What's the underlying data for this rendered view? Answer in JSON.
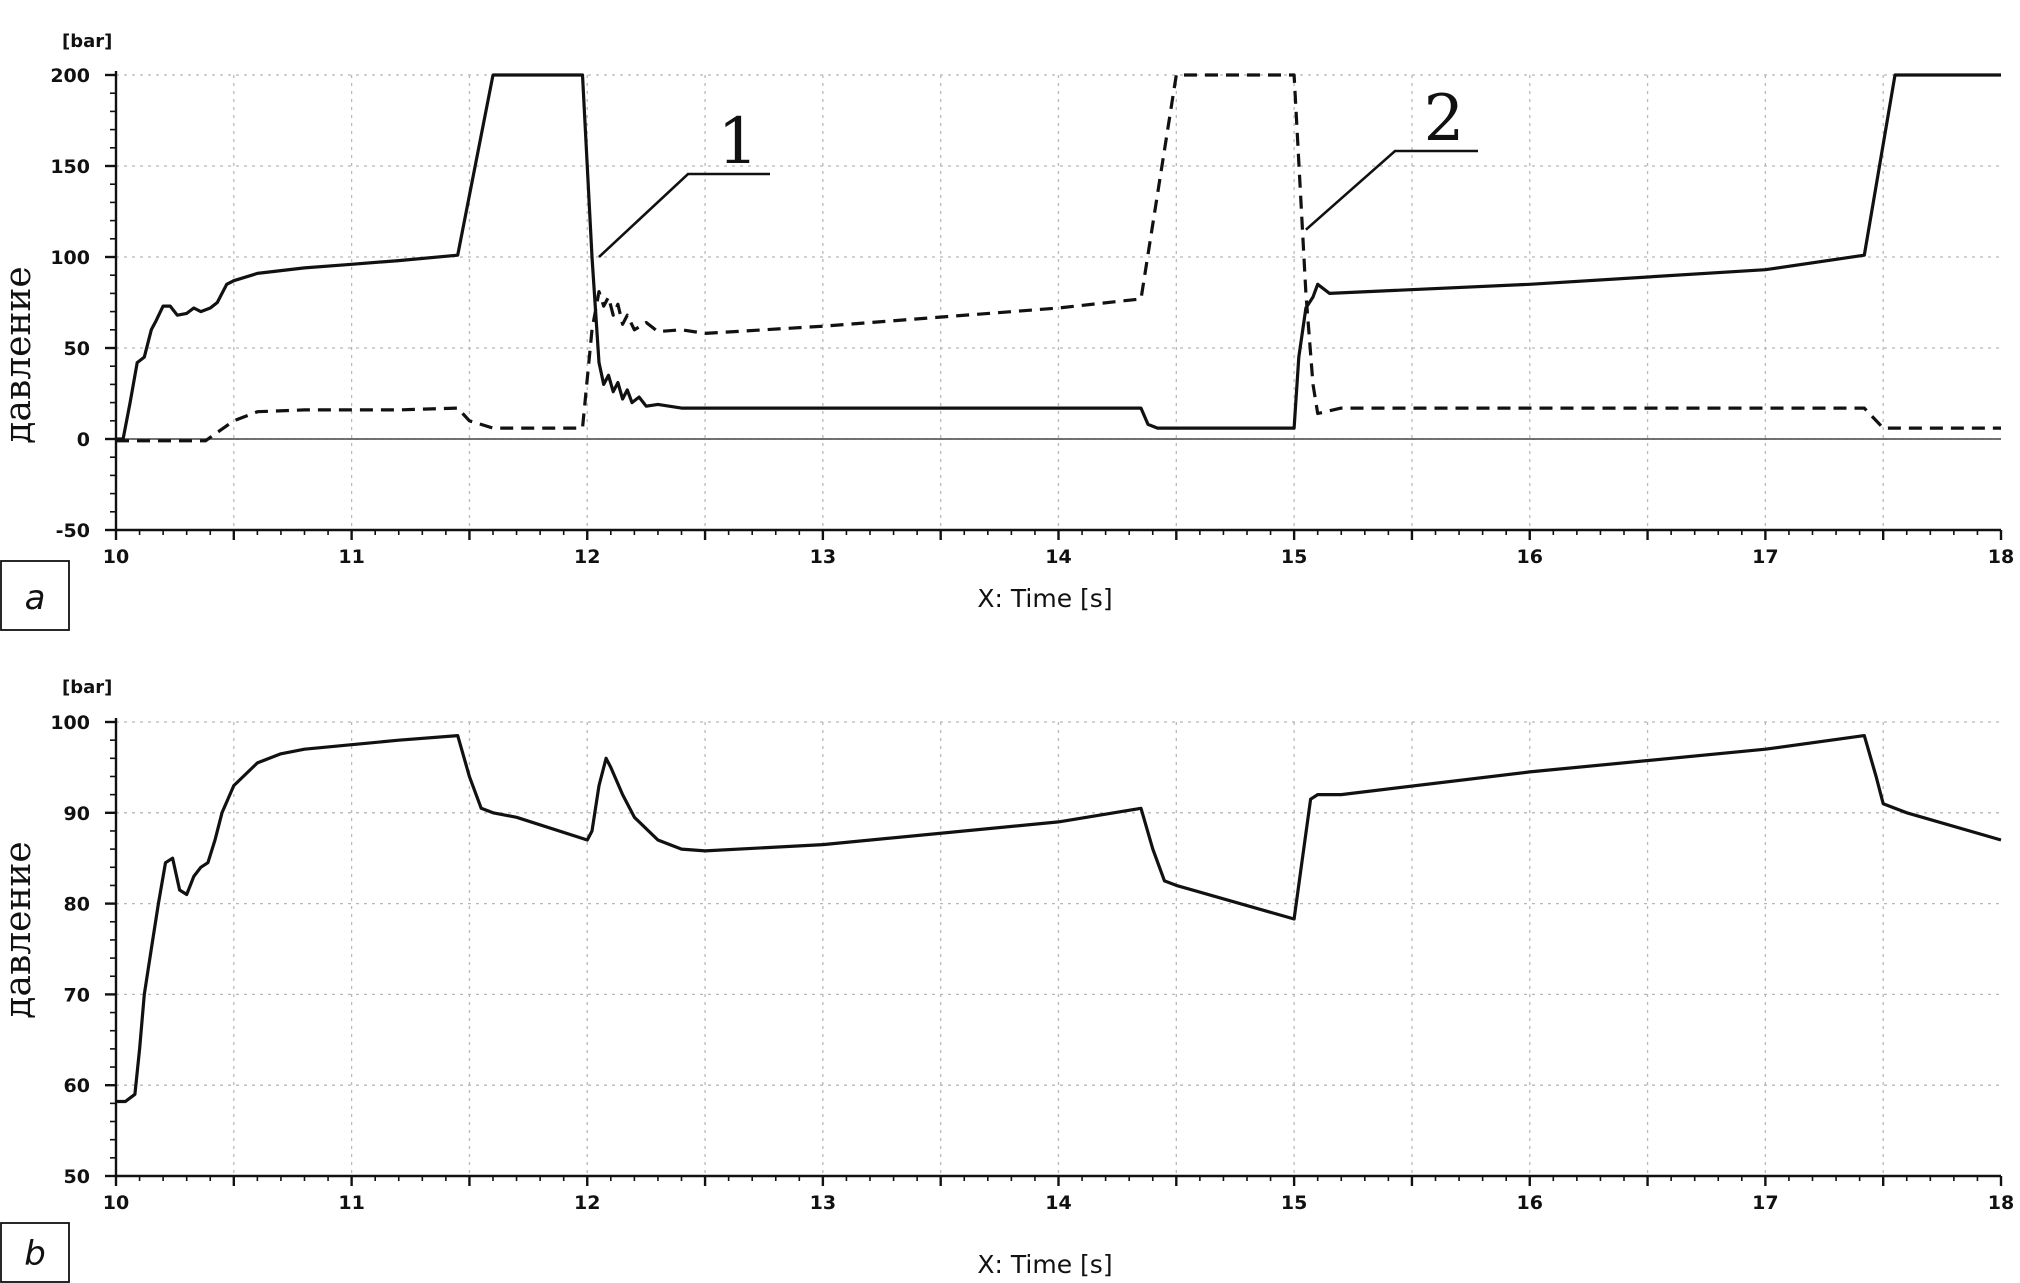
{
  "chart_data": [
    {
      "panel_label": "a",
      "type": "line",
      "unit": "[bar]",
      "ylabel": "давление",
      "xlabel": "X: Time [s]",
      "xlim": [
        10,
        18
      ],
      "ylim": [
        -50,
        200
      ],
      "xticks": [
        "10",
        "11",
        "12",
        "13",
        "14",
        "15",
        "16",
        "17",
        "18"
      ],
      "yticks": [
        "-50",
        "0",
        "50",
        "100",
        "150",
        "200"
      ],
      "grid": true,
      "annotations": [
        {
          "text": "1",
          "x": 12.05,
          "y": 100
        },
        {
          "text": "2",
          "x": 15.05,
          "y": 115
        }
      ],
      "series": [
        {
          "style": "solid",
          "x": [
            10.0,
            10.03,
            10.06,
            10.09,
            10.12,
            10.15,
            10.17,
            10.2,
            10.23,
            10.26,
            10.3,
            10.33,
            10.36,
            10.4,
            10.43,
            10.47,
            10.5,
            10.6,
            10.8,
            11.0,
            11.2,
            11.45,
            11.6,
            11.7,
            11.98,
            12.02,
            12.05,
            12.07,
            12.09,
            12.11,
            12.13,
            12.15,
            12.17,
            12.19,
            12.22,
            12.25,
            12.3,
            12.4,
            12.5,
            13.0,
            14.0,
            14.35,
            14.38,
            14.42,
            15.0,
            15.02,
            15.05,
            15.08,
            15.1,
            15.15,
            16.0,
            17.0,
            17.42,
            17.55,
            18.0
          ],
          "values": [
            0,
            0,
            20,
            42,
            45,
            60,
            65,
            73,
            73,
            68,
            69,
            72,
            70,
            72,
            75,
            85,
            87,
            91,
            94,
            96,
            98,
            101,
            200,
            200,
            200,
            100,
            42,
            30,
            35,
            26,
            31,
            22,
            27,
            20,
            23,
            18,
            19,
            17,
            17,
            17,
            17,
            17,
            8,
            6,
            6,
            45,
            72,
            78,
            85,
            80,
            85,
            93,
            101,
            200,
            200
          ]
        },
        {
          "style": "dashed",
          "x": [
            10.0,
            10.38,
            10.5,
            10.6,
            10.8,
            11.0,
            11.2,
            11.45,
            11.5,
            11.6,
            11.98,
            12.02,
            12.05,
            12.07,
            12.09,
            12.11,
            12.13,
            12.15,
            12.17,
            12.2,
            12.25,
            12.3,
            12.4,
            12.5,
            13.0,
            14.0,
            14.35,
            14.5,
            14.55,
            15.0,
            15.05,
            15.08,
            15.1,
            15.2,
            16.0,
            17.0,
            17.42,
            17.5,
            18.0
          ],
          "values": [
            -1,
            -1,
            10,
            15,
            16,
            16,
            16,
            17,
            10,
            6,
            6,
            60,
            81,
            73,
            78,
            68,
            74,
            63,
            68,
            60,
            64,
            59,
            60,
            58,
            62,
            72,
            77,
            200,
            200,
            200,
            80,
            30,
            14,
            17,
            17,
            17,
            17,
            6,
            6
          ]
        }
      ]
    },
    {
      "panel_label": "b",
      "type": "line",
      "unit": "[bar]",
      "ylabel": "давление",
      "xlabel": "X: Time [s]",
      "xlim": [
        10,
        18
      ],
      "ylim": [
        50,
        100
      ],
      "xticks": [
        "10",
        "11",
        "12",
        "13",
        "14",
        "15",
        "16",
        "17",
        "18"
      ],
      "yticks": [
        "50",
        "60",
        "70",
        "80",
        "90",
        "100"
      ],
      "grid": true,
      "series": [
        {
          "style": "solid",
          "x": [
            10.0,
            10.04,
            10.08,
            10.1,
            10.12,
            10.15,
            10.18,
            10.21,
            10.24,
            10.27,
            10.3,
            10.33,
            10.36,
            10.39,
            10.42,
            10.45,
            10.5,
            10.6,
            10.7,
            10.8,
            11.0,
            11.2,
            11.45,
            11.5,
            11.55,
            11.6,
            11.7,
            12.0,
            12.02,
            12.05,
            12.08,
            12.1,
            12.15,
            12.2,
            12.3,
            12.4,
            12.5,
            13.0,
            14.0,
            14.35,
            14.4,
            14.45,
            14.5,
            15.0,
            15.03,
            15.07,
            15.1,
            15.2,
            16.0,
            17.0,
            17.42,
            17.47,
            17.5,
            17.6,
            18.0
          ],
          "values": [
            58.2,
            58.2,
            59,
            64,
            70,
            75,
            80,
            84.5,
            85,
            81.5,
            81,
            83,
            84,
            84.5,
            87,
            90,
            93,
            95.5,
            96.5,
            97,
            97.5,
            98,
            98.5,
            94,
            90.5,
            90,
            89.5,
            87,
            88,
            93,
            96,
            95,
            92,
            89.5,
            87,
            86,
            85.8,
            86.5,
            89,
            90.5,
            86,
            82.5,
            82,
            78.3,
            84,
            91.5,
            92,
            92,
            94.5,
            97,
            98.5,
            94,
            91,
            90,
            87
          ]
        }
      ]
    }
  ]
}
